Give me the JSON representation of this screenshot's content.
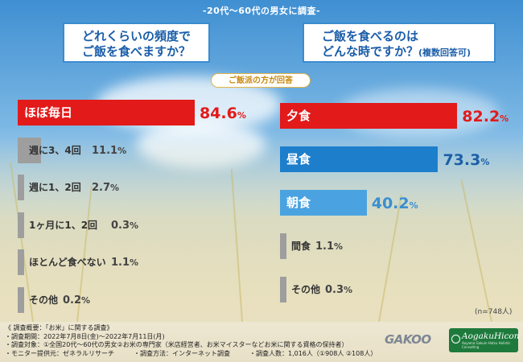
{
  "header": {
    "survey_title": "-20代～60代の男女に調査-",
    "q1_line1": "どれくらいの頻度で",
    "q1_line2": "ご飯を食べますか？",
    "q2_line1": "ご飯を食べるのは",
    "q2_line2": "どんな時ですか？",
    "q2_suffix": "(複数回答可)",
    "note": "ご飯派の方が回答"
  },
  "chart_data": [
    {
      "type": "bar",
      "orientation": "horizontal",
      "title": "どれくらいの頻度でご飯を食べますか？",
      "categories": [
        "ほぼ毎日",
        "週に3、4回",
        "週に1、2回",
        "1ヶ月に1、2回",
        "ほとんど食べない",
        "その他"
      ],
      "values": [
        84.6,
        11.1,
        2.7,
        0.3,
        1.1,
        0.2
      ],
      "value_labels": [
        [
          "84.6",
          "%"
        ],
        [
          "11.1",
          "%"
        ],
        [
          "2.7",
          "%"
        ],
        [
          "0.3",
          "%"
        ],
        [
          "1.1",
          "%"
        ],
        [
          "0.2",
          "%"
        ]
      ],
      "unit": "%",
      "highlight_color": "#e21a1a",
      "base_color": "#9e9e9e",
      "value_color_highlight": "#e21a1a",
      "value_color_base": "#444444"
    },
    {
      "type": "bar",
      "orientation": "horizontal",
      "title": "ご飯を食べるのはどんな時ですか？(複数回答可)",
      "categories": [
        "夕食",
        "昼食",
        "朝食",
        "間食",
        "その他"
      ],
      "values": [
        82.2,
        73.3,
        40.2,
        1.1,
        0.3
      ],
      "value_labels": [
        [
          "82.2",
          "%"
        ],
        [
          "73.3",
          "%"
        ],
        [
          "40.2",
          "%"
        ],
        [
          "1.1",
          "%"
        ],
        [
          "0.3",
          "%"
        ]
      ],
      "unit": "%",
      "colors": [
        "#e21a1a",
        "#1d7fcc",
        "#4aa3e0",
        "#9e9e9e",
        "#9e9e9e"
      ],
      "value_colors": [
        "#e21a1a",
        "#1d5fa6",
        "#3a8fd0",
        "#444444",
        "#444444"
      ],
      "n_note": "(n=748人)"
    }
  ],
  "footer": {
    "lines": [
      "《 調査概要：「お米」に関する調査》",
      "・調査期間：2022年7月8日(金)～2022年7月11日(月)",
      "・調査対象：①全国20代～60代の男女②お米の専門家（米店経営者、お米マイスターなどお米に関する資格の保持者）",
      "・モニター提供元：ゼネラルリサーチ　　　・調査方法：インターネット調査　　　・調査人数：1,016人（①908人 ②108人）"
    ],
    "logo_left": "GAKOO",
    "logo_right": "AogakuHicon",
    "logo_right_sub": "Aoyama Gakuin Hatsu Holistic Consulting"
  }
}
